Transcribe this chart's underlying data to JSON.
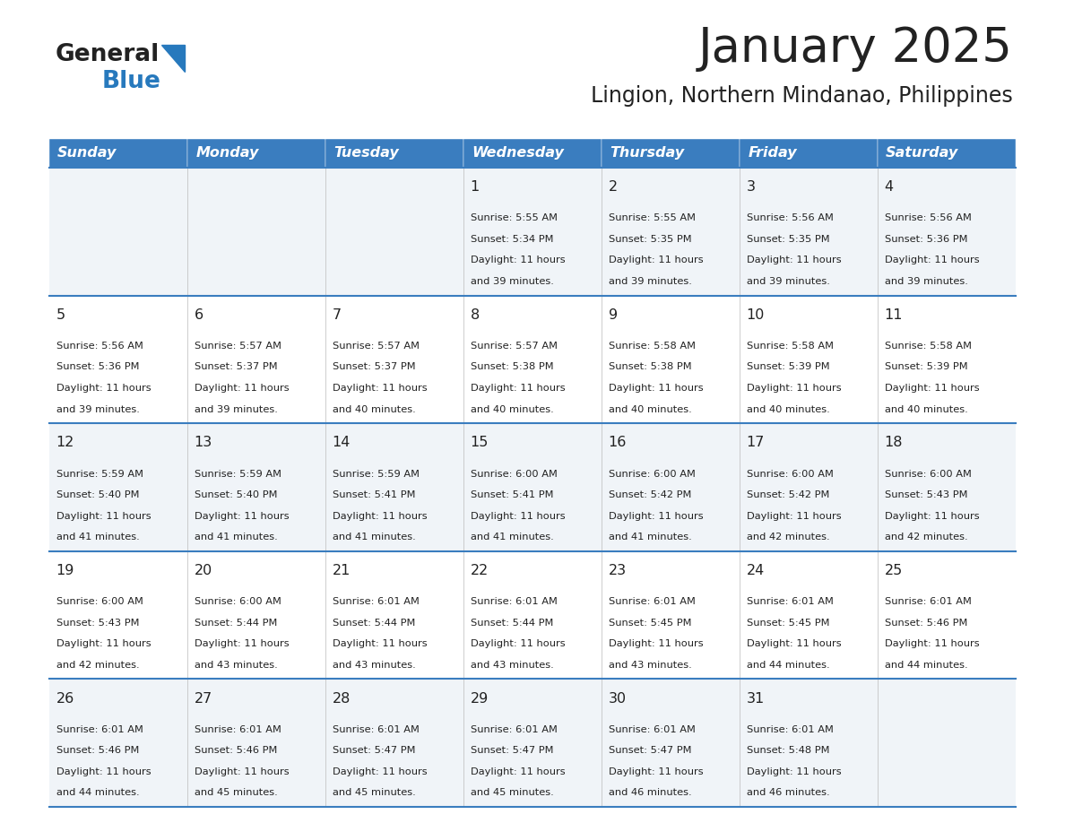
{
  "title": "January 2025",
  "subtitle": "Lingion, Northern Mindanao, Philippines",
  "header_bg": "#3a7dbf",
  "header_text_color": "#ffffff",
  "days_of_week": [
    "Sunday",
    "Monday",
    "Tuesday",
    "Wednesday",
    "Thursday",
    "Friday",
    "Saturday"
  ],
  "row_bg_odd": "#f0f4f8",
  "row_bg_even": "#ffffff",
  "divider_color": "#3a7dbf",
  "text_color": "#222222",
  "logo_general_color": "#222222",
  "logo_blue_color": "#2779bd",
  "calendar_data": [
    {
      "day": 1,
      "col": 3,
      "row": 0,
      "sunrise": "5:55 AM",
      "sunset": "5:34 PM",
      "daylight": "11 hours\nand 39 minutes."
    },
    {
      "day": 2,
      "col": 4,
      "row": 0,
      "sunrise": "5:55 AM",
      "sunset": "5:35 PM",
      "daylight": "11 hours\nand 39 minutes."
    },
    {
      "day": 3,
      "col": 5,
      "row": 0,
      "sunrise": "5:56 AM",
      "sunset": "5:35 PM",
      "daylight": "11 hours\nand 39 minutes."
    },
    {
      "day": 4,
      "col": 6,
      "row": 0,
      "sunrise": "5:56 AM",
      "sunset": "5:36 PM",
      "daylight": "11 hours\nand 39 minutes."
    },
    {
      "day": 5,
      "col": 0,
      "row": 1,
      "sunrise": "5:56 AM",
      "sunset": "5:36 PM",
      "daylight": "11 hours\nand 39 minutes."
    },
    {
      "day": 6,
      "col": 1,
      "row": 1,
      "sunrise": "5:57 AM",
      "sunset": "5:37 PM",
      "daylight": "11 hours\nand 39 minutes."
    },
    {
      "day": 7,
      "col": 2,
      "row": 1,
      "sunrise": "5:57 AM",
      "sunset": "5:37 PM",
      "daylight": "11 hours\nand 40 minutes."
    },
    {
      "day": 8,
      "col": 3,
      "row": 1,
      "sunrise": "5:57 AM",
      "sunset": "5:38 PM",
      "daylight": "11 hours\nand 40 minutes."
    },
    {
      "day": 9,
      "col": 4,
      "row": 1,
      "sunrise": "5:58 AM",
      "sunset": "5:38 PM",
      "daylight": "11 hours\nand 40 minutes."
    },
    {
      "day": 10,
      "col": 5,
      "row": 1,
      "sunrise": "5:58 AM",
      "sunset": "5:39 PM",
      "daylight": "11 hours\nand 40 minutes."
    },
    {
      "day": 11,
      "col": 6,
      "row": 1,
      "sunrise": "5:58 AM",
      "sunset": "5:39 PM",
      "daylight": "11 hours\nand 40 minutes."
    },
    {
      "day": 12,
      "col": 0,
      "row": 2,
      "sunrise": "5:59 AM",
      "sunset": "5:40 PM",
      "daylight": "11 hours\nand 41 minutes."
    },
    {
      "day": 13,
      "col": 1,
      "row": 2,
      "sunrise": "5:59 AM",
      "sunset": "5:40 PM",
      "daylight": "11 hours\nand 41 minutes."
    },
    {
      "day": 14,
      "col": 2,
      "row": 2,
      "sunrise": "5:59 AM",
      "sunset": "5:41 PM",
      "daylight": "11 hours\nand 41 minutes."
    },
    {
      "day": 15,
      "col": 3,
      "row": 2,
      "sunrise": "6:00 AM",
      "sunset": "5:41 PM",
      "daylight": "11 hours\nand 41 minutes."
    },
    {
      "day": 16,
      "col": 4,
      "row": 2,
      "sunrise": "6:00 AM",
      "sunset": "5:42 PM",
      "daylight": "11 hours\nand 41 minutes."
    },
    {
      "day": 17,
      "col": 5,
      "row": 2,
      "sunrise": "6:00 AM",
      "sunset": "5:42 PM",
      "daylight": "11 hours\nand 42 minutes."
    },
    {
      "day": 18,
      "col": 6,
      "row": 2,
      "sunrise": "6:00 AM",
      "sunset": "5:43 PM",
      "daylight": "11 hours\nand 42 minutes."
    },
    {
      "day": 19,
      "col": 0,
      "row": 3,
      "sunrise": "6:00 AM",
      "sunset": "5:43 PM",
      "daylight": "11 hours\nand 42 minutes."
    },
    {
      "day": 20,
      "col": 1,
      "row": 3,
      "sunrise": "6:00 AM",
      "sunset": "5:44 PM",
      "daylight": "11 hours\nand 43 minutes."
    },
    {
      "day": 21,
      "col": 2,
      "row": 3,
      "sunrise": "6:01 AM",
      "sunset": "5:44 PM",
      "daylight": "11 hours\nand 43 minutes."
    },
    {
      "day": 22,
      "col": 3,
      "row": 3,
      "sunrise": "6:01 AM",
      "sunset": "5:44 PM",
      "daylight": "11 hours\nand 43 minutes."
    },
    {
      "day": 23,
      "col": 4,
      "row": 3,
      "sunrise": "6:01 AM",
      "sunset": "5:45 PM",
      "daylight": "11 hours\nand 43 minutes."
    },
    {
      "day": 24,
      "col": 5,
      "row": 3,
      "sunrise": "6:01 AM",
      "sunset": "5:45 PM",
      "daylight": "11 hours\nand 44 minutes."
    },
    {
      "day": 25,
      "col": 6,
      "row": 3,
      "sunrise": "6:01 AM",
      "sunset": "5:46 PM",
      "daylight": "11 hours\nand 44 minutes."
    },
    {
      "day": 26,
      "col": 0,
      "row": 4,
      "sunrise": "6:01 AM",
      "sunset": "5:46 PM",
      "daylight": "11 hours\nand 44 minutes."
    },
    {
      "day": 27,
      "col": 1,
      "row": 4,
      "sunrise": "6:01 AM",
      "sunset": "5:46 PM",
      "daylight": "11 hours\nand 45 minutes."
    },
    {
      "day": 28,
      "col": 2,
      "row": 4,
      "sunrise": "6:01 AM",
      "sunset": "5:47 PM",
      "daylight": "11 hours\nand 45 minutes."
    },
    {
      "day": 29,
      "col": 3,
      "row": 4,
      "sunrise": "6:01 AM",
      "sunset": "5:47 PM",
      "daylight": "11 hours\nand 45 minutes."
    },
    {
      "day": 30,
      "col": 4,
      "row": 4,
      "sunrise": "6:01 AM",
      "sunset": "5:47 PM",
      "daylight": "11 hours\nand 46 minutes."
    },
    {
      "day": 31,
      "col": 5,
      "row": 4,
      "sunrise": "6:01 AM",
      "sunset": "5:48 PM",
      "daylight": "11 hours\nand 46 minutes."
    }
  ]
}
